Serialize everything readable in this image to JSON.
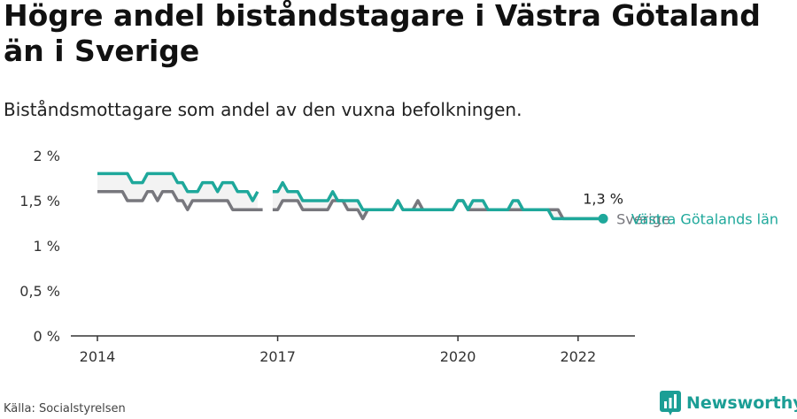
{
  "header": {
    "title": "Högre andel biståndstagare i Västra Götaland än i Sverige",
    "subtitle": "Biståndsmottagare som andel av den vuxna befolkningen."
  },
  "footer": {
    "source": "Källa: Socialstyrelsen",
    "brand": "Newsworthy",
    "brand_icon": "bar-chart-logo-icon"
  },
  "colors": {
    "accent": "#1ea89b",
    "sverige": "#77777d",
    "axis": "#333333",
    "band": "#eeeeee"
  },
  "chart_data": {
    "type": "line",
    "x_unit": "month",
    "xlim": [
      "2014-01",
      "2022-12"
    ],
    "ylim": [
      0,
      2
    ],
    "y_ticks": [
      0,
      0.5,
      1,
      1.5,
      2
    ],
    "y_tick_labels": [
      "0 %",
      "0,5 %",
      "1 %",
      "1,5 %",
      "2 %"
    ],
    "x_ticks": [
      "2014-01",
      "2017-01",
      "2020-01",
      "2022-01"
    ],
    "x_tick_labels": [
      "2014",
      "2017",
      "2020",
      "2022"
    ],
    "grid": false,
    "end_value_label": "1,3 %",
    "series": [
      {
        "name": "Sverige",
        "color": "#77777d",
        "points": [
          [
            "2014-01",
            1.6
          ],
          [
            "2014-02",
            1.6
          ],
          [
            "2014-03",
            1.6
          ],
          [
            "2014-04",
            1.6
          ],
          [
            "2014-05",
            1.6
          ],
          [
            "2014-06",
            1.6
          ],
          [
            "2014-07",
            1.5
          ],
          [
            "2014-08",
            1.5
          ],
          [
            "2014-09",
            1.5
          ],
          [
            "2014-10",
            1.5
          ],
          [
            "2014-11",
            1.6
          ],
          [
            "2014-12",
            1.6
          ],
          [
            "2015-01",
            1.5
          ],
          [
            "2015-02",
            1.6
          ],
          [
            "2015-03",
            1.6
          ],
          [
            "2015-04",
            1.6
          ],
          [
            "2015-05",
            1.5
          ],
          [
            "2015-06",
            1.5
          ],
          [
            "2015-07",
            1.4
          ],
          [
            "2015-08",
            1.5
          ],
          [
            "2015-09",
            1.5
          ],
          [
            "2015-10",
            1.5
          ],
          [
            "2015-11",
            1.5
          ],
          [
            "2015-12",
            1.5
          ],
          [
            "2016-01",
            1.5
          ],
          [
            "2016-02",
            1.5
          ],
          [
            "2016-03",
            1.5
          ],
          [
            "2016-04",
            1.4
          ],
          [
            "2016-05",
            1.4
          ],
          [
            "2016-06",
            1.4
          ],
          [
            "2016-07",
            1.4
          ],
          [
            "2016-08",
            1.4
          ],
          [
            "2016-09",
            1.4
          ],
          [
            "2016-10",
            1.4
          ],
          [
            "2016-12",
            1.4
          ],
          [
            "2017-01",
            1.4
          ],
          [
            "2017-02",
            1.5
          ],
          [
            "2017-03",
            1.5
          ],
          [
            "2017-04",
            1.5
          ],
          [
            "2017-05",
            1.5
          ],
          [
            "2017-06",
            1.4
          ],
          [
            "2017-07",
            1.4
          ],
          [
            "2017-08",
            1.4
          ],
          [
            "2017-09",
            1.4
          ],
          [
            "2017-10",
            1.4
          ],
          [
            "2017-11",
            1.4
          ],
          [
            "2017-12",
            1.5
          ],
          [
            "2018-01",
            1.5
          ],
          [
            "2018-02",
            1.5
          ],
          [
            "2018-03",
            1.4
          ],
          [
            "2018-04",
            1.4
          ],
          [
            "2018-05",
            1.4
          ],
          [
            "2018-06",
            1.3
          ],
          [
            "2018-07",
            1.4
          ],
          [
            "2018-08",
            1.4
          ],
          [
            "2018-09",
            1.4
          ],
          [
            "2018-10",
            1.4
          ],
          [
            "2018-11",
            1.4
          ],
          [
            "2018-12",
            1.4
          ],
          [
            "2019-01",
            1.5
          ],
          [
            "2019-02",
            1.4
          ],
          [
            "2019-03",
            1.4
          ],
          [
            "2019-04",
            1.4
          ],
          [
            "2019-05",
            1.5
          ],
          [
            "2019-06",
            1.4
          ],
          [
            "2019-07",
            1.4
          ],
          [
            "2019-08",
            1.4
          ],
          [
            "2019-09",
            1.4
          ],
          [
            "2019-10",
            1.4
          ],
          [
            "2019-11",
            1.4
          ],
          [
            "2019-12",
            1.4
          ],
          [
            "2020-01",
            1.5
          ],
          [
            "2020-02",
            1.5
          ],
          [
            "2020-03",
            1.4
          ],
          [
            "2020-04",
            1.4
          ],
          [
            "2020-05",
            1.4
          ],
          [
            "2020-06",
            1.4
          ],
          [
            "2020-07",
            1.4
          ],
          [
            "2020-08",
            1.4
          ],
          [
            "2020-09",
            1.4
          ],
          [
            "2020-10",
            1.4
          ],
          [
            "2020-11",
            1.4
          ],
          [
            "2020-12",
            1.4
          ],
          [
            "2021-01",
            1.4
          ],
          [
            "2021-02",
            1.4
          ],
          [
            "2021-03",
            1.4
          ],
          [
            "2021-04",
            1.4
          ],
          [
            "2021-05",
            1.4
          ],
          [
            "2021-06",
            1.4
          ],
          [
            "2021-07",
            1.4
          ],
          [
            "2021-08",
            1.4
          ],
          [
            "2021-09",
            1.4
          ],
          [
            "2021-10",
            1.3
          ],
          [
            "2021-11",
            1.3
          ],
          [
            "2021-12",
            1.3
          ],
          [
            "2022-01",
            1.3
          ],
          [
            "2022-02",
            1.3
          ],
          [
            "2022-03",
            1.3
          ],
          [
            "2022-04",
            1.3
          ],
          [
            "2022-05",
            1.3
          ],
          [
            "2022-06",
            1.3
          ]
        ]
      },
      {
        "name": "Västra Götalands län",
        "color": "#1ea89b",
        "points": [
          [
            "2014-01",
            1.8
          ],
          [
            "2014-02",
            1.8
          ],
          [
            "2014-03",
            1.8
          ],
          [
            "2014-04",
            1.8
          ],
          [
            "2014-05",
            1.8
          ],
          [
            "2014-06",
            1.8
          ],
          [
            "2014-07",
            1.8
          ],
          [
            "2014-08",
            1.7
          ],
          [
            "2014-09",
            1.7
          ],
          [
            "2014-10",
            1.7
          ],
          [
            "2014-11",
            1.8
          ],
          [
            "2014-12",
            1.8
          ],
          [
            "2015-01",
            1.8
          ],
          [
            "2015-02",
            1.8
          ],
          [
            "2015-03",
            1.8
          ],
          [
            "2015-04",
            1.8
          ],
          [
            "2015-05",
            1.7
          ],
          [
            "2015-06",
            1.7
          ],
          [
            "2015-07",
            1.6
          ],
          [
            "2015-08",
            1.6
          ],
          [
            "2015-09",
            1.6
          ],
          [
            "2015-10",
            1.7
          ],
          [
            "2015-11",
            1.7
          ],
          [
            "2015-12",
            1.7
          ],
          [
            "2016-01",
            1.6
          ],
          [
            "2016-02",
            1.7
          ],
          [
            "2016-03",
            1.7
          ],
          [
            "2016-04",
            1.7
          ],
          [
            "2016-05",
            1.6
          ],
          [
            "2016-06",
            1.6
          ],
          [
            "2016-07",
            1.6
          ],
          [
            "2016-08",
            1.5
          ],
          [
            "2016-09",
            1.6
          ],
          [
            "2016-12",
            1.6
          ],
          [
            "2017-01",
            1.6
          ],
          [
            "2017-02",
            1.7
          ],
          [
            "2017-03",
            1.6
          ],
          [
            "2017-04",
            1.6
          ],
          [
            "2017-05",
            1.6
          ],
          [
            "2017-06",
            1.5
          ],
          [
            "2017-07",
            1.5
          ],
          [
            "2017-08",
            1.5
          ],
          [
            "2017-09",
            1.5
          ],
          [
            "2017-10",
            1.5
          ],
          [
            "2017-11",
            1.5
          ],
          [
            "2017-12",
            1.6
          ],
          [
            "2018-01",
            1.5
          ],
          [
            "2018-02",
            1.5
          ],
          [
            "2018-03",
            1.5
          ],
          [
            "2018-04",
            1.5
          ],
          [
            "2018-05",
            1.5
          ],
          [
            "2018-06",
            1.4
          ],
          [
            "2018-07",
            1.4
          ],
          [
            "2018-08",
            1.4
          ],
          [
            "2018-09",
            1.4
          ],
          [
            "2018-10",
            1.4
          ],
          [
            "2018-11",
            1.4
          ],
          [
            "2018-12",
            1.4
          ],
          [
            "2019-01",
            1.5
          ],
          [
            "2019-02",
            1.4
          ],
          [
            "2019-03",
            1.4
          ],
          [
            "2019-04",
            1.4
          ],
          [
            "2019-05",
            1.4
          ],
          [
            "2019-06",
            1.4
          ],
          [
            "2019-07",
            1.4
          ],
          [
            "2019-08",
            1.4
          ],
          [
            "2019-09",
            1.4
          ],
          [
            "2019-10",
            1.4
          ],
          [
            "2019-11",
            1.4
          ],
          [
            "2019-12",
            1.4
          ],
          [
            "2020-01",
            1.5
          ],
          [
            "2020-02",
            1.5
          ],
          [
            "2020-03",
            1.4
          ],
          [
            "2020-04",
            1.5
          ],
          [
            "2020-05",
            1.5
          ],
          [
            "2020-06",
            1.5
          ],
          [
            "2020-07",
            1.4
          ],
          [
            "2020-08",
            1.4
          ],
          [
            "2020-09",
            1.4
          ],
          [
            "2020-10",
            1.4
          ],
          [
            "2020-11",
            1.4
          ],
          [
            "2020-12",
            1.5
          ],
          [
            "2021-01",
            1.5
          ],
          [
            "2021-02",
            1.4
          ],
          [
            "2021-03",
            1.4
          ],
          [
            "2021-04",
            1.4
          ],
          [
            "2021-05",
            1.4
          ],
          [
            "2021-06",
            1.4
          ],
          [
            "2021-07",
            1.4
          ],
          [
            "2021-08",
            1.3
          ],
          [
            "2021-09",
            1.3
          ],
          [
            "2021-10",
            1.3
          ],
          [
            "2021-11",
            1.3
          ],
          [
            "2021-12",
            1.3
          ],
          [
            "2022-01",
            1.3
          ],
          [
            "2022-02",
            1.3
          ],
          [
            "2022-03",
            1.3
          ],
          [
            "2022-04",
            1.3
          ],
          [
            "2022-05",
            1.3
          ],
          [
            "2022-06",
            1.3
          ]
        ]
      }
    ]
  }
}
